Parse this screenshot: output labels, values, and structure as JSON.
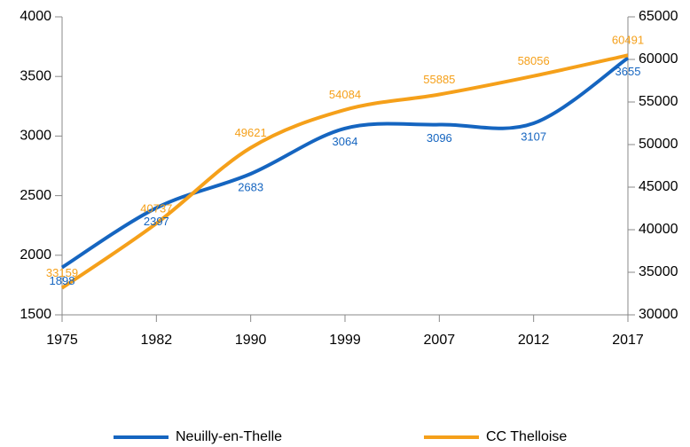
{
  "chart_data": {
    "type": "line",
    "categories": [
      "1975",
      "1982",
      "1990",
      "1999",
      "2007",
      "2012",
      "2017"
    ],
    "series": [
      {
        "name": "Neuilly-en-Thelle",
        "color": "#1565c0",
        "values": [
          1898,
          2397,
          2683,
          3064,
          3096,
          3107,
          3655
        ]
      },
      {
        "name": "CC Thelloise",
        "color": "#f5a01a",
        "axis": "y2",
        "values": [
          33159,
          40737,
          49621,
          54084,
          55885,
          58056,
          60491
        ]
      }
    ],
    "ylim": [
      1500,
      4000
    ],
    "yticks": [
      1500,
      2000,
      2500,
      3000,
      3500,
      4000
    ],
    "y2lim": [
      30000,
      65000
    ],
    "y2ticks": [
      30000,
      35000,
      40000,
      45000,
      50000,
      55000,
      60000,
      65000
    ],
    "legend": "bottom",
    "grid": false
  }
}
